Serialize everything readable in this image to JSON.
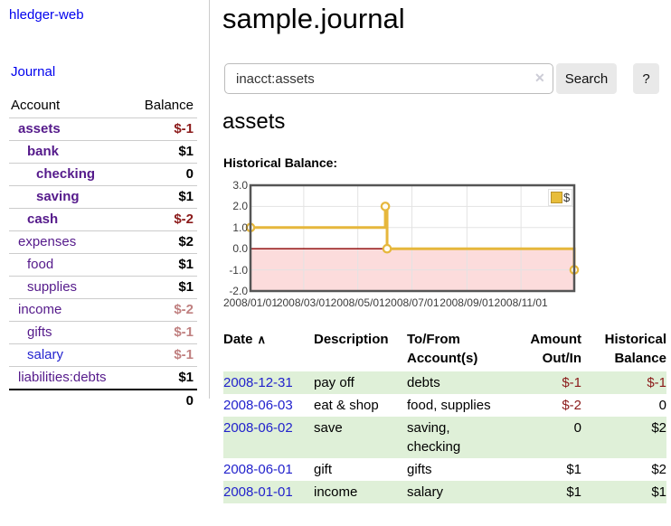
{
  "theme": {
    "link_purple": "#551a8b",
    "link_blue": "#2323cf",
    "date_blue": "#2222cc",
    "neg_dark": "#8b1a1a",
    "neg_rose": "#c08080",
    "row_green": "#dff0d8",
    "chart_gold": "#e6b73c"
  },
  "sidebar": {
    "brand": "hledger-web",
    "journal_link": "Journal",
    "accounts_table": {
      "headers": {
        "account": "Account",
        "balance": "Balance"
      },
      "rows": [
        {
          "name": "assets",
          "indent": 0,
          "bold": true,
          "balance": "$-1",
          "balance_color": "dark"
        },
        {
          "name": "bank",
          "indent": 1,
          "bold": true,
          "balance": "$1",
          "balance_color": "black"
        },
        {
          "name": "checking",
          "indent": 2,
          "bold": true,
          "balance": "0",
          "balance_color": "black"
        },
        {
          "name": "saving",
          "indent": 2,
          "bold": true,
          "balance": "$1",
          "balance_color": "black"
        },
        {
          "name": "cash",
          "indent": 1,
          "bold": true,
          "balance": "$-2",
          "balance_color": "dark"
        },
        {
          "name": "expenses",
          "indent": 0,
          "bold": false,
          "balance": "$2",
          "balance_color": "black"
        },
        {
          "name": "food",
          "indent": 1,
          "bold": false,
          "balance": "$1",
          "balance_color": "black"
        },
        {
          "name": "supplies",
          "indent": 1,
          "bold": false,
          "balance": "$1",
          "balance_color": "black"
        },
        {
          "name": "income",
          "indent": 0,
          "bold": false,
          "balance": "$-2",
          "balance_color": "rose"
        },
        {
          "name": "gifts",
          "indent": 1,
          "bold": false,
          "balance": "$-1",
          "balance_color": "rose"
        },
        {
          "name": "salary",
          "indent": 1,
          "bold": false,
          "balance": "$-1",
          "balance_color": "rose",
          "link_color": "blue"
        },
        {
          "name": "liabilities:debts",
          "indent": 0,
          "bold": false,
          "balance": "$1",
          "balance_color": "black"
        }
      ],
      "total": "0"
    }
  },
  "main": {
    "title": "sample.journal",
    "search": {
      "value": "inacct:assets",
      "clear_icon": "✕",
      "button_label": "Search",
      "help_label": "?"
    },
    "account_heading": "assets",
    "register": {
      "headers": {
        "date": "Date",
        "sort_icon": "∧",
        "description": "Description",
        "tofrom": "To/From Account(s)",
        "amount": "Amount Out/In",
        "balance": "Historical Balance"
      },
      "rows": [
        {
          "date": "2008-12-31",
          "description": "pay off",
          "accounts": "debts",
          "amount": "$-1",
          "amount_neg": true,
          "balance": "$-1",
          "balance_neg": true
        },
        {
          "date": "2008-06-03",
          "description": "eat & shop",
          "accounts": "food, supplies",
          "amount": "$-2",
          "amount_neg": true,
          "balance": "0",
          "balance_neg": false
        },
        {
          "date": "2008-06-02",
          "description": "save",
          "accounts": "saving, checking",
          "amount": "0",
          "amount_neg": false,
          "balance": "$2",
          "balance_neg": false
        },
        {
          "date": "2008-06-01",
          "description": "gift",
          "accounts": "gifts",
          "amount": "$1",
          "amount_neg": false,
          "balance": "$2",
          "balance_neg": false
        },
        {
          "date": "2008-01-01",
          "description": "income",
          "accounts": "salary",
          "amount": "$1",
          "amount_neg": false,
          "balance": "$1",
          "balance_neg": false
        }
      ]
    }
  },
  "chart_data": {
    "type": "line",
    "title": "Historical Balance:",
    "step": true,
    "series": [
      {
        "name": "$",
        "color": "#e6b73c",
        "points": [
          [
            "2008-01-01",
            1
          ],
          [
            "2008-06-01",
            2
          ],
          [
            "2008-06-03",
            0
          ],
          [
            "2008-12-31",
            -1
          ]
        ]
      }
    ],
    "x_range": [
      "2008-01-01",
      "2008-12-31"
    ],
    "ylim": [
      -2,
      3
    ],
    "yticks": [
      3.0,
      2.0,
      1.0,
      0.0,
      -1.0,
      -2.0
    ],
    "xticks": [
      {
        "date": "2008-01-01",
        "label": "2008/01/01"
      },
      {
        "date": "2008-03-01",
        "label": "2008/03/01"
      },
      {
        "date": "2008-05-01",
        "label": "2008/05/01"
      },
      {
        "date": "2008-07-01",
        "label": "2008/07/01"
      },
      {
        "date": "2008-09-01",
        "label": "2008/09/01"
      },
      {
        "date": "2008-11-01",
        "label": "2008/11/01"
      }
    ],
    "grid": true,
    "legend_position": "top-right",
    "legend": "$",
    "negative_fill": "#fcdcdc",
    "zero_line_color": "#8b0000",
    "plot_border_color": "#555555",
    "grid_color": "#e3e3e3"
  }
}
